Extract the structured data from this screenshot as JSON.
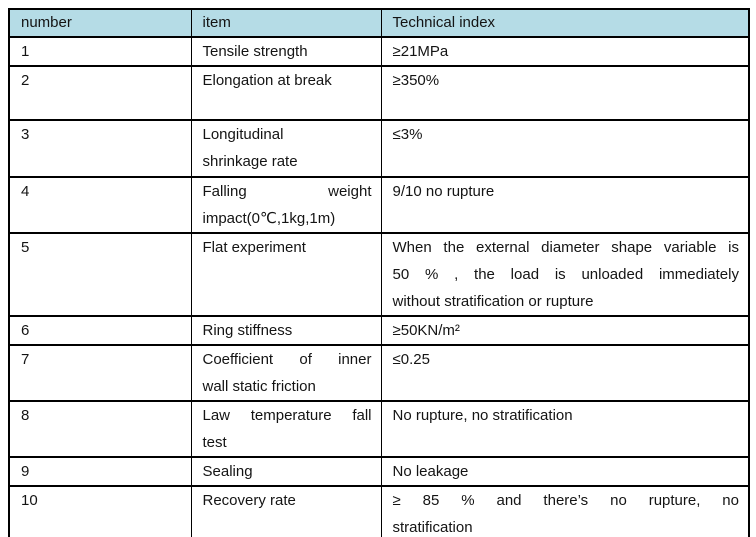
{
  "table": {
    "header": {
      "bg": "#b5dce6",
      "columns": [
        "number",
        "item",
        "Technical index"
      ]
    },
    "rows": [
      {
        "number": "1",
        "item": "Tensile strength",
        "index": "≥21MPa"
      },
      {
        "number": "2",
        "item": "Elongation at break",
        "index": "≥350%"
      },
      {
        "number": "3",
        "item_lines": [
          "Longitudinal",
          "shrinkage rate"
        ],
        "index": "≤3%"
      },
      {
        "number": "4",
        "item_lines": [
          "Falling weight",
          "impact(0℃,1kg,1m)"
        ],
        "index": "9/10 no rupture"
      },
      {
        "number": "5",
        "item": "Flat experiment",
        "index_lines": [
          "When the external diameter shape variable is",
          "50 % , the load is unloaded immediately",
          "without stratification or rupture"
        ]
      },
      {
        "number": "6",
        "item": "Ring stiffness",
        "index": "≥50KN/m²"
      },
      {
        "number": "7",
        "item_lines": [
          "Coefficient of inner",
          "wall static friction"
        ],
        "index": "≤0.25"
      },
      {
        "number": "8",
        "item_lines": [
          "Law temperature fall",
          "test"
        ],
        "index": "No rupture, no stratification"
      },
      {
        "number": "9",
        "item": "Sealing",
        "index": "No leakage"
      },
      {
        "number": "10",
        "item": "Recovery rate",
        "index_lines": [
          "≥ 85 %  and there’s no rupture, no",
          "stratification"
        ]
      }
    ]
  }
}
